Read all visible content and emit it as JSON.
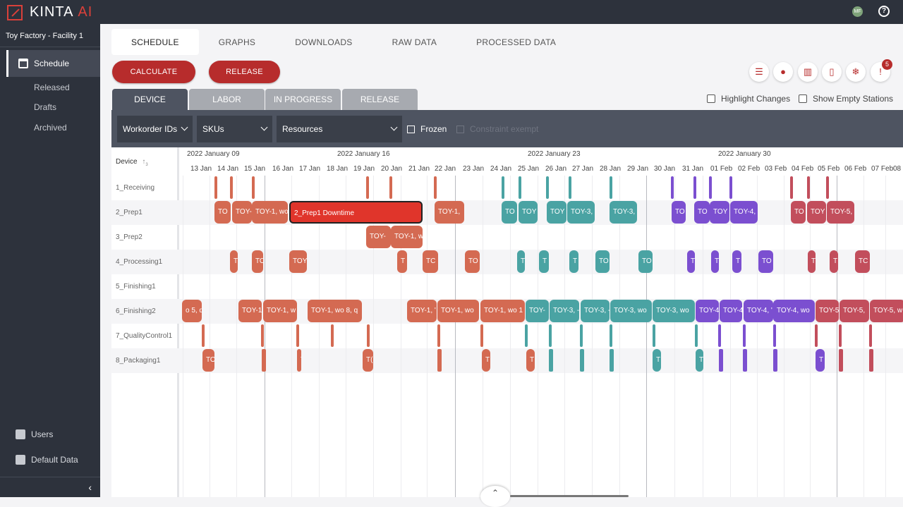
{
  "app": {
    "brand": "KINTA",
    "brand_suffix": "AI",
    "avatar_initials": "MF"
  },
  "sidebar": {
    "facility": "Toy Factory - Facility 1",
    "schedule": "Schedule",
    "sub": [
      "Released",
      "Drafts",
      "Archived"
    ],
    "users": "Users",
    "default_data": "Default Data",
    "collapse": "‹"
  },
  "tabs": [
    "SCHEDULE",
    "GRAPHS",
    "DOWNLOADS",
    "RAW DATA",
    "PROCESSED DATA"
  ],
  "actions": {
    "calculate": "CALCULATE",
    "release": "RELEASE"
  },
  "toolbar": {
    "alert_count": "5"
  },
  "subtabs": [
    "DEVICE",
    "LABOR",
    "IN PROGRESS",
    "RELEASE"
  ],
  "options": {
    "highlight": "Highlight Changes",
    "show_empty": "Show Empty Stations"
  },
  "filters": {
    "workorder": "Workorder IDs",
    "skus": "SKUs",
    "resources": "Resources",
    "frozen": "Frozen",
    "constraint": "Constraint exempt"
  },
  "gantt": {
    "device_header": "Device",
    "sort_rank": "3",
    "weeks": [
      "2022 January 09",
      "2022 January 16",
      "2022 January 23",
      "2022 January 30"
    ],
    "days": [
      "n",
      "13 Jan",
      "14 Jan",
      "15 Jan",
      "16 Jan",
      "17 Jan",
      "18 Jan",
      "19 Jan",
      "20 Jan",
      "21 Jan",
      "22 Jan",
      "23 Jan",
      "24 Jan",
      "25 Jan",
      "26 Jan",
      "27 Jan",
      "28 Jan",
      "29 Jan",
      "30 Jan",
      "31 Jan",
      "01 Feb",
      "02 Feb",
      "03 Feb",
      "04 Feb",
      "05 Feb",
      "06 Feb",
      "07 Feb",
      "08"
    ],
    "devices": [
      "1_Receiving",
      "2_Prep1",
      "3_Prep2",
      "4_Processing1",
      "5_Finishing1",
      "6_Finishing2",
      "7_QualityControl1",
      "8_Packaging1"
    ],
    "bars": [
      {
        "text": "TO"
      },
      {
        "text": "TOY-"
      },
      {
        "text": "TOY-1, wo"
      },
      {
        "text": "2_Prep1 Downtime"
      },
      {
        "text": "TOY-1,"
      },
      {
        "text": "TO"
      },
      {
        "text": "TOY"
      },
      {
        "text": "TOY"
      },
      {
        "text": "TOY-3,"
      },
      {
        "text": "TOY-3,"
      },
      {
        "text": "TO"
      },
      {
        "text": "TO"
      },
      {
        "text": "TOY"
      },
      {
        "text": "TOY-4,"
      },
      {
        "text": "TO"
      },
      {
        "text": "TOY"
      },
      {
        "text": "TOY-5,"
      },
      {
        "text": "TOY-"
      },
      {
        "text": "TOY-1, w"
      },
      {
        "text": "T"
      },
      {
        "text": "TO"
      },
      {
        "text": "TOY"
      },
      {
        "text": "T"
      },
      {
        "text": "TC"
      },
      {
        "text": "TO"
      },
      {
        "text": "T"
      },
      {
        "text": "T"
      },
      {
        "text": "T"
      },
      {
        "text": "TO"
      },
      {
        "text": "TO"
      },
      {
        "text": "T"
      },
      {
        "text": "T"
      },
      {
        "text": "T"
      },
      {
        "text": "TO"
      },
      {
        "text": "T"
      },
      {
        "text": "T"
      },
      {
        "text": "TC"
      },
      {
        "text": "o 5, qt"
      },
      {
        "text": "TOY-1"
      },
      {
        "text": "TOY-1, w"
      },
      {
        "text": "TOY-1, wo 8, q"
      },
      {
        "text": "TOY-1, '"
      },
      {
        "text": "TOY-1, wo"
      },
      {
        "text": "TOY-1, wo 1"
      },
      {
        "text": "TOY-"
      },
      {
        "text": "TOY-3, -"
      },
      {
        "text": "TOY-3, -"
      },
      {
        "text": "TOY-3, wo"
      },
      {
        "text": "TOY-3, wo"
      },
      {
        "text": "TOY-4"
      },
      {
        "text": "TOY-4"
      },
      {
        "text": "TOY-4, '"
      },
      {
        "text": "TOY-4, wo"
      },
      {
        "text": "TOY-5"
      },
      {
        "text": "TOY-5,"
      },
      {
        "text": "TOY-5, w"
      },
      {
        "text": "TO"
      },
      {
        "text": "T"
      },
      {
        "text": "T("
      },
      {
        "text": "T"
      },
      {
        "text": "T"
      },
      {
        "text": "T"
      },
      {
        "text": "T"
      },
      {
        "text": "T"
      }
    ]
  }
}
